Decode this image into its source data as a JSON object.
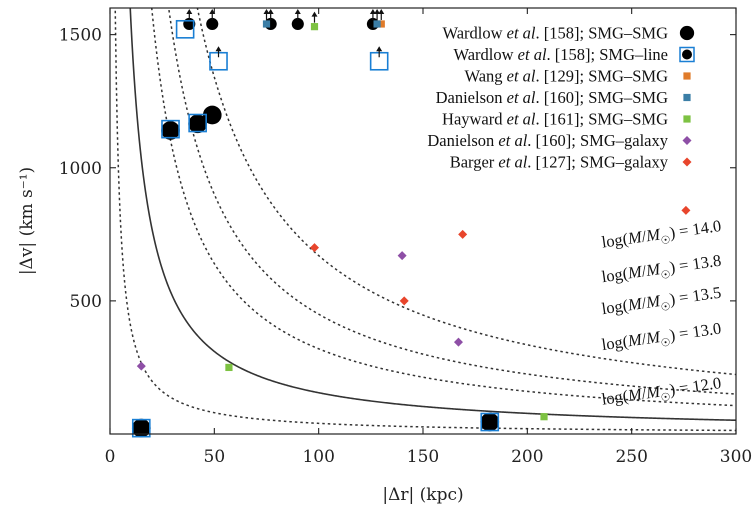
{
  "chart_data": {
    "type": "scatter",
    "xlabel": "|Δr| (kpc)",
    "ylabel": "|Δv| (km s⁻¹)",
    "xlim": [
      0,
      300
    ],
    "ylim": [
      0,
      1600
    ],
    "xticks": [
      0,
      50,
      100,
      150,
      200,
      250,
      300
    ],
    "yticks": [
      500,
      1000,
      1500
    ],
    "grid": false,
    "legend_position": "top-right",
    "series": [
      {
        "name": "Wardlow et al. [158]; SMG–SMG",
        "name_parts": [
          "Wardlow ",
          "et al",
          ". [158]; SMG–SMG"
        ],
        "marker": "circle",
        "color": "#000000",
        "points": [
          [
            15,
            22
          ],
          [
            49,
            1198
          ],
          [
            29,
            1140
          ],
          [
            42,
            1165
          ],
          [
            182,
            45
          ],
          [
            38,
            1540
          ],
          [
            49,
            1540
          ],
          [
            77,
            1540
          ],
          [
            90,
            1540
          ],
          [
            126,
            1540
          ]
        ],
        "lower_limits": [
          false,
          false,
          false,
          false,
          false,
          true,
          true,
          true,
          true,
          true
        ]
      },
      {
        "name": "Wardlow et al. [158]; SMG–line",
        "name_parts": [
          "Wardlow ",
          "et al",
          ". [158]; SMG–line"
        ],
        "marker": "open-square",
        "color": "#1a7fd4",
        "points": [
          [
            15,
            22
          ],
          [
            29,
            1145
          ],
          [
            42,
            1168
          ],
          [
            182,
            45
          ],
          [
            36,
            1520
          ],
          [
            52,
            1400
          ],
          [
            129,
            1400
          ]
        ],
        "lower_limits": [
          false,
          false,
          false,
          false,
          false,
          true,
          true
        ]
      },
      {
        "name": "Wang et al. [129]; SMG–SMG",
        "name_parts": [
          "Wang ",
          "et al",
          ". [129]; SMG–SMG"
        ],
        "marker": "square",
        "color": "#e07b2a",
        "points": [
          [
            130,
            1540
          ]
        ],
        "lower_limits": [
          true
        ]
      },
      {
        "name": "Danielson et al. [160]; SMG–SMG",
        "name_parts": [
          "Danielson ",
          "et al",
          ". [160]; SMG–SMG"
        ],
        "marker": "square",
        "color": "#3b7ea6",
        "points": [
          [
            75,
            1540
          ],
          [
            128,
            1540
          ]
        ],
        "lower_limits": [
          true,
          true
        ]
      },
      {
        "name": "Hayward et al. [161]; SMG–SMG",
        "name_parts": [
          "Hayward ",
          "et al",
          ". [161]; SMG–SMG"
        ],
        "marker": "square",
        "color": "#7dc242",
        "points": [
          [
            57,
            250
          ],
          [
            208,
            65
          ],
          [
            98,
            1530
          ]
        ],
        "lower_limits": [
          false,
          false,
          true
        ]
      },
      {
        "name": "Danielson et al. [160]; SMG–galaxy",
        "name_parts": [
          "Danielson ",
          "et al",
          ". [160]; SMG–galaxy"
        ],
        "marker": "diamond",
        "color": "#8e4fa6",
        "points": [
          [
            15,
            255
          ],
          [
            140,
            670
          ],
          [
            167,
            345
          ]
        ],
        "lower_limits": [
          false,
          false,
          false
        ]
      },
      {
        "name": "Barger et al. [127]; SMG–galaxy",
        "name_parts": [
          "Barger ",
          "et al",
          ". [127]; SMG–galaxy"
        ],
        "marker": "diamond",
        "color": "#e8452c",
        "points": [
          [
            98,
            700
          ],
          [
            141,
            500
          ],
          [
            169,
            750
          ],
          [
            276,
            840
          ]
        ],
        "lower_limits": [
          false,
          false,
          false,
          false
        ]
      }
    ],
    "curves": [
      {
        "label": "log(M/M☉) = 14.0",
        "label_parts": [
          "log(",
          "M",
          "/",
          "M",
          "☉",
          ") = 14.0"
        ],
        "style": "dotted",
        "k": 67000,
        "anchor_x": 236,
        "anchor_y": 700
      },
      {
        "label": "log(M/M☉) = 13.8",
        "label_parts": [
          "log(",
          "M",
          "/",
          "M",
          "☉",
          ") = 13.8"
        ],
        "style": "dotted",
        "k": 45000,
        "anchor_x": 236,
        "anchor_y": 570
      },
      {
        "label": "log(M/M☉) = 13.5",
        "label_parts": [
          "log(",
          "M",
          "/",
          "M",
          "☉",
          ") = 13.5"
        ],
        "style": "dotted",
        "k": 32000,
        "anchor_x": 236,
        "anchor_y": 450
      },
      {
        "label": "log(M/M☉) = 13.0",
        "label_parts": [
          "log(",
          "M",
          "/",
          "M",
          "☉",
          ") = 13.0"
        ],
        "style": "solid",
        "k": 15500,
        "anchor_x": 236,
        "anchor_y": 315
      },
      {
        "label": "log(M/M☉) = 12.0",
        "label_parts": [
          "log(",
          "M",
          "/",
          "M",
          "☉",
          ") = 12.0"
        ],
        "style": "dotted",
        "k": 4000,
        "anchor_x": 236,
        "anchor_y": 110
      }
    ]
  },
  "colors": {
    "axis": "#222222",
    "curve": "#333333",
    "open_square_edge": "#1a7fd4"
  }
}
